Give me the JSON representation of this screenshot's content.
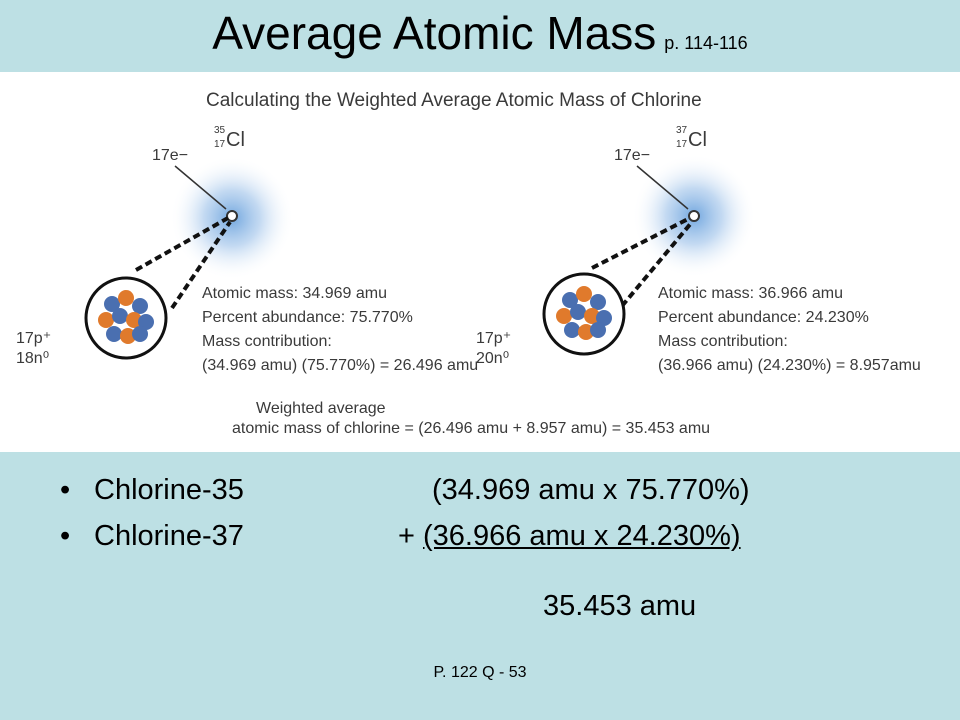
{
  "slide": {
    "title": "Average Atomic Mass",
    "pages": "p. 114-116",
    "footer": "P. 122 Q - 53"
  },
  "figure": {
    "heading": "Calculating the Weighted Average Atomic Mass of Chlorine",
    "isotope_a": {
      "mass_number": "35",
      "atomic_number": "17",
      "symbol": "Cl",
      "electrons": "17e−",
      "protons": "17p⁺",
      "neutrons": "18n⁰",
      "atomic_mass": "Atomic mass: 34.969 amu",
      "abundance": "Percent abundance: 75.770%",
      "contribution_label": "Mass contribution:",
      "contribution": "(34.969 amu) (75.770%) = 26.496 amu"
    },
    "isotope_b": {
      "mass_number": "37",
      "atomic_number": "17",
      "symbol": "Cl",
      "electrons": "17e−",
      "protons": "17p⁺",
      "neutrons": "20n⁰",
      "atomic_mass": "Atomic mass: 36.966 amu",
      "abundance": "Percent abundance: 24.230%",
      "contribution_label": "Mass contribution:",
      "contribution": "(36.966 amu) (24.230%) = 8.957amu"
    },
    "weighted_label": "Weighted average",
    "weighted_eq": "atomic mass of chlorine = (26.496 amu + 8.957 amu) = 35.453 amu"
  },
  "bullets": [
    {
      "name": "Chlorine-35",
      "calc": "(34.969 amu x 75.770%)"
    },
    {
      "name": "Chlorine-37",
      "prefix": "+ ",
      "calc": "(36.966 amu x 24.230%)"
    }
  ],
  "total": "35.453 amu",
  "colors": {
    "background": "#bde0e4",
    "proton": "#e07a2c",
    "neutron": "#4a6fb0",
    "cloud": "#7fb0e0"
  }
}
